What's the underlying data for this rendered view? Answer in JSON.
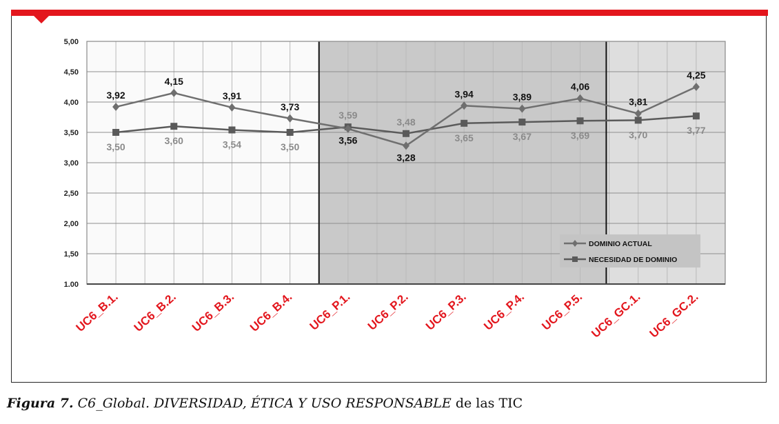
{
  "figure": {
    "label": "Figura 7.",
    "title_italic": " C6_Global. DIVERSIDAD, ÉTICA Y USO RESPONSABLE",
    "title_tail": " de las TIC"
  },
  "colors": {
    "accent_red": "#e3161d",
    "series_actual": "#6f6f6f",
    "series_need": "#5a5a5a",
    "zone_p": "#c9c9c9",
    "zone_gc": "#dedede",
    "zone_b": "#fafafa"
  },
  "chart_data": {
    "type": "line",
    "categories": [
      "UC6_B.1.",
      "UC6_B.2.",
      "UC6_B.3.",
      "UC6_B.4.",
      "UC6_P.1.",
      "UC6_P.2.",
      "UC6_P.3.",
      "UC6_P.4.",
      "UC6_P.5.",
      "UC6_GC.1.",
      "UC6_GC.2."
    ],
    "y_ticks": [
      "1.00",
      "1,50",
      "2,00",
      "2,50",
      "3,00",
      "3,50",
      "4,00",
      "4,50",
      "5,00"
    ],
    "ylim": [
      1,
      5
    ],
    "grid": true,
    "legend_position": "bottom-right",
    "series": [
      {
        "name": "DOMINIO ACTUAL",
        "marker": "diamond",
        "values": [
          3.92,
          4.15,
          3.91,
          3.73,
          3.56,
          3.28,
          3.94,
          3.89,
          4.06,
          3.81,
          4.25
        ],
        "labels": [
          "3,92",
          "4,15",
          "3,91",
          "3,73",
          "3,56",
          "3,28",
          "3,94",
          "3,89",
          "4,06",
          "3,81",
          "4,25"
        ]
      },
      {
        "name": "NECESIDAD DE DOMINIO",
        "marker": "square",
        "values": [
          3.5,
          3.6,
          3.54,
          3.5,
          3.59,
          3.48,
          3.65,
          3.67,
          3.69,
          3.7,
          3.77
        ],
        "labels": [
          "3,50",
          "3,60",
          "3,54",
          "3,50",
          "3,59",
          "3,48",
          "3,65",
          "3,67",
          "3,69",
          "3,70",
          "3,77"
        ]
      }
    ]
  }
}
